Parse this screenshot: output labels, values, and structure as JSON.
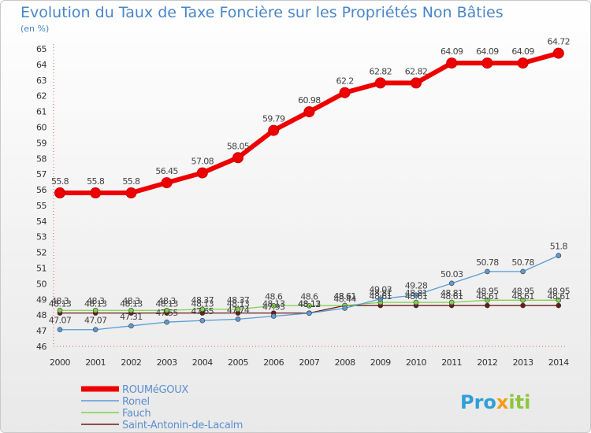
{
  "chart_data": {
    "type": "line",
    "title": "Evolution du Taux de Taxe Foncière sur les Propriétés Non Bâties",
    "subtitle": "(en %)",
    "xlabel": "",
    "ylabel": "(en %)",
    "ylim": [
      46,
      65
    ],
    "grid": false,
    "legend_position": "bottom-left",
    "categories": [
      "2000",
      "2001",
      "2002",
      "2003",
      "2004",
      "2005",
      "2006",
      "2007",
      "2008",
      "2009",
      "2010",
      "2011",
      "2012",
      "2013",
      "2014"
    ],
    "y_ticks": [
      "46",
      "47",
      "48",
      "49",
      "50",
      "51",
      "52",
      "53",
      "54",
      "55",
      "56",
      "57",
      "58",
      "59",
      "60",
      "61",
      "62",
      "63",
      "64",
      "65"
    ],
    "series": [
      {
        "name": "Saint-Antonin-de-Lacalm",
        "color": "#6b1a1a",
        "values": [
          48.13,
          48.13,
          48.13,
          48.13,
          48.13,
          48.13,
          48.13,
          48.13,
          48.61,
          48.61,
          48.61,
          48.61,
          48.61,
          48.61,
          48.61
        ],
        "labels": [
          "48.13",
          "48.13",
          "48.13",
          "48.13",
          "48.13",
          "48.13",
          "48.13",
          "48.13",
          "48.61",
          "48.61",
          "48.61",
          "48.61",
          "48.61",
          "48.61",
          "48.61"
        ]
      },
      {
        "name": "Fauch",
        "color": "#7fd24a",
        "values": [
          48.3,
          48.3,
          48.3,
          48.3,
          48.37,
          48.37,
          48.6,
          48.6,
          48.61,
          48.81,
          48.81,
          48.81,
          48.95,
          48.95,
          48.95
        ],
        "labels": [
          "48.3",
          "48.3",
          "48.3",
          "48.3",
          "48.37",
          "48.37",
          "48.6",
          "48.6",
          "48.61",
          "48.81",
          "48.81",
          "48.81",
          "48.95",
          "48.95",
          "48.95"
        ]
      },
      {
        "name": "Ronel",
        "color": "#5b9bd5",
        "values": [
          47.07,
          47.07,
          47.31,
          47.55,
          47.65,
          47.74,
          47.93,
          48.12,
          48.44,
          49.03,
          49.28,
          50.03,
          50.78,
          50.78,
          51.8
        ],
        "labels": [
          "47.07",
          "47.07",
          "47.31",
          "47.55",
          "47.65",
          "47.74",
          "47.93",
          "48.12",
          "48.44",
          "49.03",
          "49.28",
          "50.03",
          "50.78",
          "50.78",
          "51.8"
        ]
      },
      {
        "name": "ROUMéGOUX",
        "color": "#ee0000",
        "values": [
          55.8,
          55.8,
          55.8,
          56.45,
          57.08,
          58.05,
          59.79,
          60.98,
          62.2,
          62.82,
          62.82,
          64.09,
          64.09,
          64.09,
          64.72
        ],
        "labels": [
          "55.8",
          "55.8",
          "55.8",
          "56.45",
          "57.08",
          "58.05",
          "59.79",
          "60.98",
          "62.2",
          "62.82",
          "62.82",
          "64.09",
          "64.09",
          "64.09",
          "64.72"
        ]
      }
    ],
    "legend": [
      "ROUMéGOUX",
      "Ronel",
      "Fauch",
      "Saint-Antonin-de-Lacalm"
    ]
  },
  "brand": {
    "prefix": "Pro",
    "middle": "x",
    "suffix": "iti"
  }
}
